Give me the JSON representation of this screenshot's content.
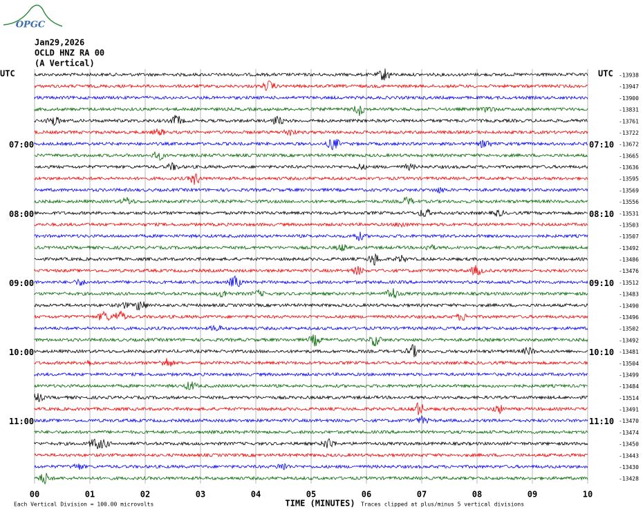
{
  "logo": "OPGC",
  "header": {
    "date": "Jan29,2026",
    "station": "OCLD HNZ RA 00",
    "component": "(A Vertical)"
  },
  "utc_left": "UTC",
  "utc_right": "UTC",
  "left_times": [
    "07:00",
    "08:00",
    "09:00",
    "10:00",
    "11:00"
  ],
  "right_times": [
    "07:10",
    "08:10",
    "09:10",
    "10:10",
    "11:10"
  ],
  "trace_labels": [
    -13938,
    -13947,
    -13900,
    -13831,
    -13761,
    -13722,
    -13672,
    -13665,
    -13636,
    -13595,
    -13569,
    -13556,
    -13531,
    -13503,
    -13507,
    -13492,
    -13486,
    -13476,
    -13512,
    -13483,
    -13490,
    -13496,
    -13502,
    -13492,
    -13481,
    -13504,
    -13499,
    -13484,
    -13514,
    -13491,
    -13470,
    -13474,
    -13450,
    -13443,
    -13430,
    -13428
  ],
  "x_labels": [
    "00",
    "01",
    "02",
    "03",
    "04",
    "05",
    "06",
    "07",
    "08",
    "09",
    "10"
  ],
  "x_title": "TIME (MINUTES)",
  "footer_left": "Each Vertical Division =  100.00 microvolts",
  "footer_right": "Traces clipped at plus/minus 5 vertical divisions"
}
